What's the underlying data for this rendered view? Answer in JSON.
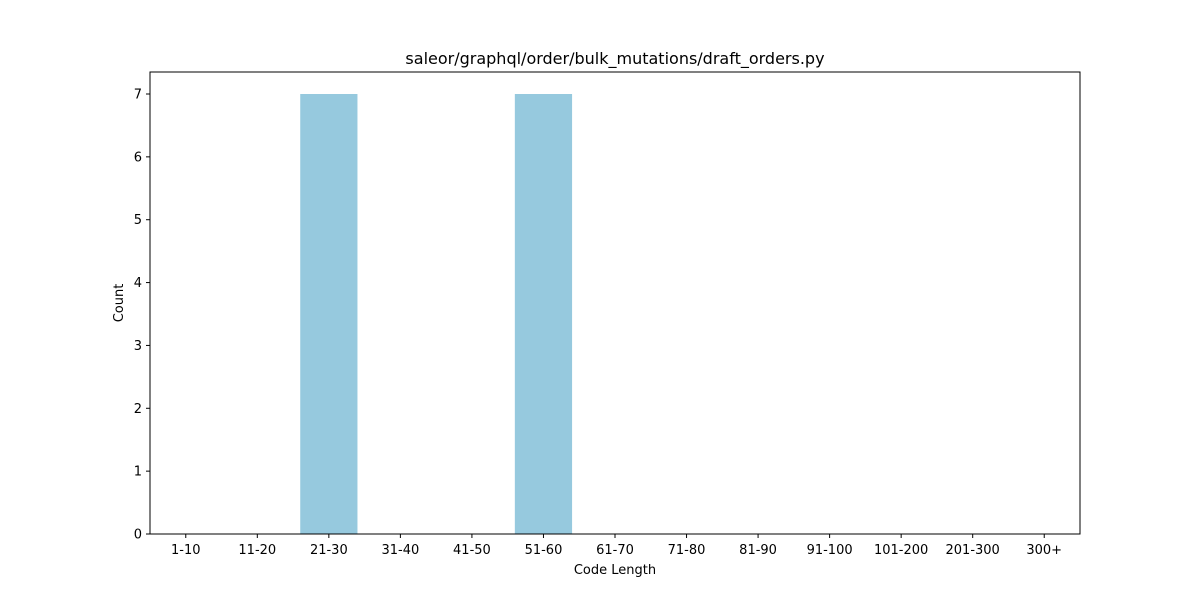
{
  "chart_data": {
    "type": "bar",
    "title": "saleor/graphql/order/bulk_mutations/draft_orders.py",
    "xlabel": "Code Length",
    "ylabel": "Count",
    "categories": [
      "1-10",
      "11-20",
      "21-30",
      "31-40",
      "41-50",
      "51-60",
      "61-70",
      "71-80",
      "81-90",
      "91-100",
      "101-200",
      "201-300",
      "300+"
    ],
    "values": [
      0,
      0,
      7,
      0,
      0,
      7,
      0,
      0,
      0,
      0,
      0,
      0,
      0
    ],
    "ylim": [
      0,
      7.35
    ],
    "yticks": [
      0,
      1,
      2,
      3,
      4,
      5,
      6,
      7
    ],
    "bar_color": "#96c9de",
    "grid": false,
    "legend": "none"
  }
}
